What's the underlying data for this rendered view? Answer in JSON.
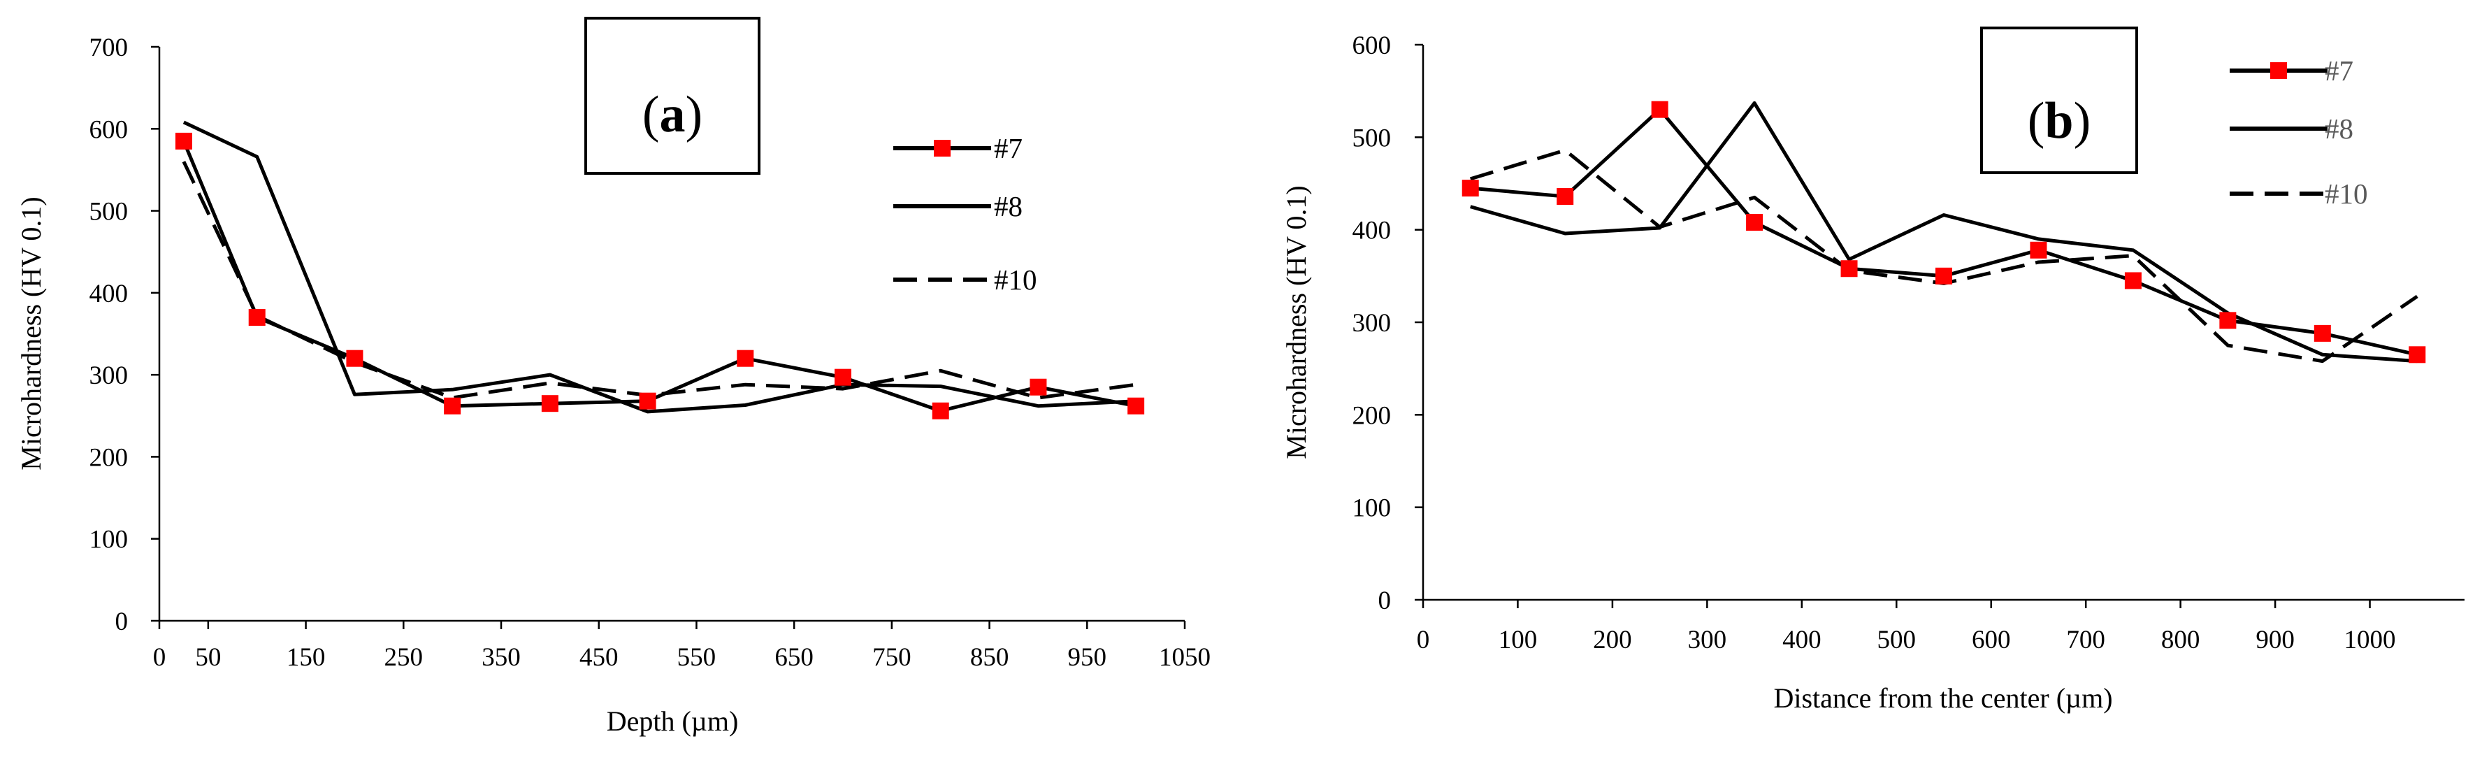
{
  "chart_data": [
    {
      "type": "line",
      "panel_label": "a",
      "xlabel": "Depth (µm)",
      "ylabel": "Microhardness (HV 0.1)",
      "xlim": [
        0,
        1050
      ],
      "ylim": [
        0,
        700
      ],
      "xticks": [
        "0",
        "50",
        "150",
        "250",
        "350",
        "450",
        "550",
        "650",
        "750",
        "850",
        "950",
        "1050"
      ],
      "yticks": [
        "0",
        "100",
        "200",
        "300",
        "400",
        "500",
        "600",
        "700"
      ],
      "grid": false,
      "legend_position": "right",
      "series": [
        {
          "name": "#7",
          "x": [
            25,
            100,
            200,
            300,
            400,
            500,
            600,
            700,
            800,
            900,
            1000
          ],
          "y": [
            585,
            370,
            320,
            262,
            265,
            268,
            320,
            297,
            256,
            285,
            262
          ]
        },
        {
          "name": "#8",
          "x": [
            25,
            100,
            200,
            300,
            400,
            500,
            600,
            700,
            800,
            900,
            1000
          ],
          "y": [
            608,
            566,
            276,
            282,
            300,
            255,
            263,
            288,
            286,
            262,
            268
          ]
        },
        {
          "name": "#10",
          "x": [
            25,
            100,
            200,
            300,
            400,
            500,
            600,
            700,
            800,
            900,
            1000
          ],
          "y": [
            560,
            372,
            315,
            272,
            290,
            275,
            288,
            283,
            305,
            272,
            288
          ]
        }
      ]
    },
    {
      "type": "line",
      "panel_label": "b",
      "xlabel": "Distance from the center (µm)",
      "ylabel": "Microhardness (HV 0.1)",
      "xlim": [
        0,
        1100
      ],
      "ylim": [
        0,
        600
      ],
      "xticks": [
        "0",
        "100",
        "200",
        "300",
        "400",
        "500",
        "600",
        "700",
        "800",
        "900",
        "1000"
      ],
      "yticks": [
        "0",
        "100",
        "200",
        "300",
        "400",
        "500",
        "600"
      ],
      "grid": false,
      "legend_position": "top-right",
      "series": [
        {
          "name": "#7",
          "x": [
            50,
            150,
            250,
            350,
            450,
            550,
            650,
            750,
            850,
            950,
            1050
          ],
          "y": [
            445,
            436,
            530,
            408,
            358,
            350,
            378,
            345,
            302,
            288,
            265
          ]
        },
        {
          "name": "#8",
          "x": [
            50,
            150,
            250,
            350,
            450,
            550,
            650,
            750,
            850,
            950,
            1050
          ],
          "y": [
            425,
            396,
            402,
            537,
            368,
            416,
            390,
            378,
            310,
            265,
            258
          ]
        },
        {
          "name": "#10",
          "x": [
            50,
            150,
            250,
            350,
            450,
            550,
            650,
            750,
            850,
            950,
            1050
          ],
          "y": [
            455,
            486,
            403,
            435,
            356,
            342,
            365,
            372,
            275,
            258,
            328
          ]
        }
      ]
    }
  ],
  "colors": {
    "marker": "#ff0000",
    "line": "#000000",
    "legend_text_a": "#000000",
    "legend_text_b": "#5a5a5a"
  }
}
